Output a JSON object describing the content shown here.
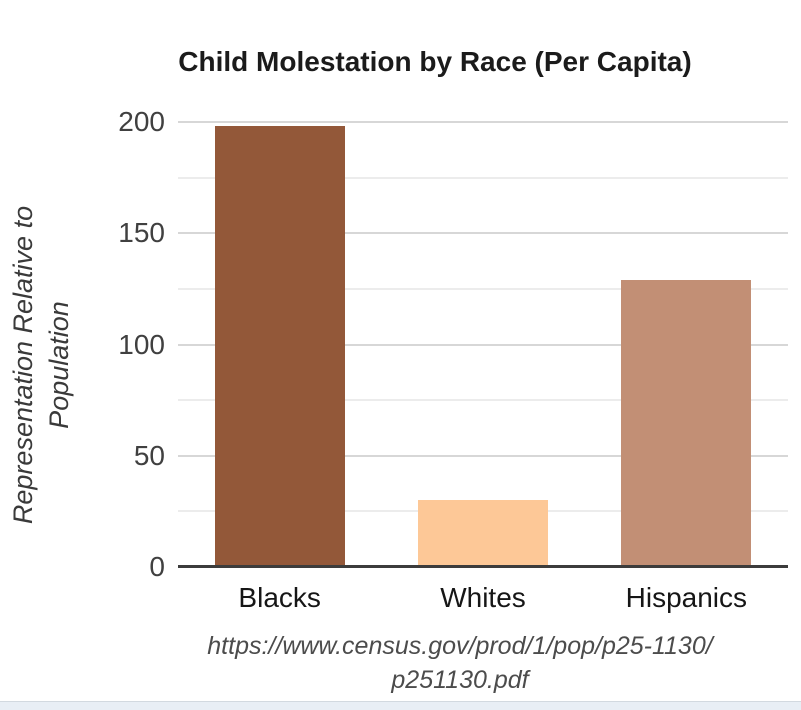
{
  "chart_data": {
    "type": "bar",
    "title": "Child Molestation by Race (Per Capita)",
    "categories": [
      "Blacks",
      "Whites",
      "Hispanics"
    ],
    "values": [
      198,
      30,
      129
    ],
    "bar_colors": [
      "#935839",
      "#fdc897",
      "#c28f75"
    ],
    "ylabel": "Representation Relative to Population",
    "ylabel_lines": [
      "Representation Relative to",
      "Population"
    ],
    "xlabel": "",
    "yticks": [
      0,
      50,
      100,
      150,
      200
    ],
    "minor_yticks": [
      25,
      75,
      125,
      175
    ],
    "ylim": [
      0,
      200
    ],
    "grid": true,
    "legend_position": "none"
  },
  "source": {
    "lines": [
      "https://www.census.gov/prod/1/pop/p25-1130/",
      "p251130.pdf"
    ]
  },
  "colors": {
    "background": "#ffffff",
    "title_text": "#1b1b1b",
    "tick_text": "#404040",
    "category_text": "#161616",
    "axis_line": "#3c3c3c",
    "major_gridline": "#d7d7d7",
    "minor_gridline": "#ececec",
    "citation_text": "#4c4c4c",
    "bottom_strip": "#e8eef5"
  }
}
